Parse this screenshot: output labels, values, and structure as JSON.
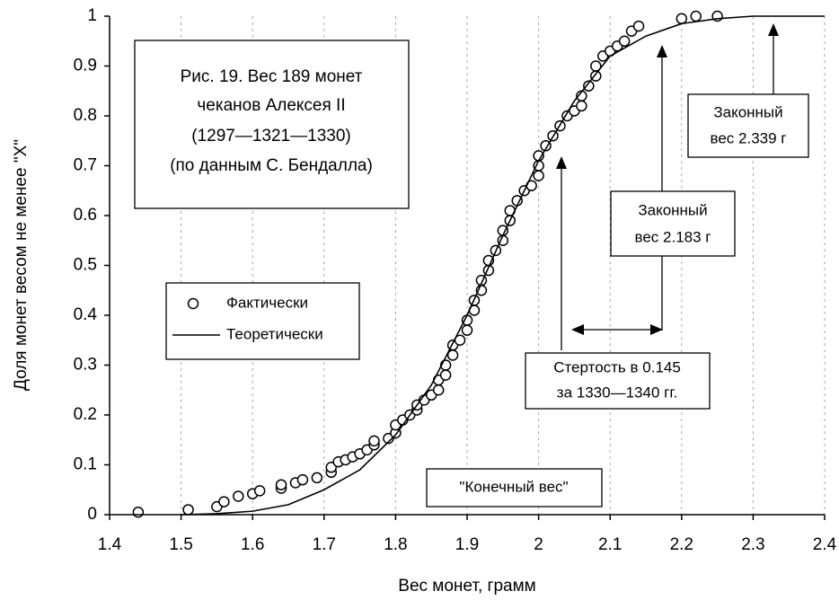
{
  "chart_data": {
    "type": "scatter",
    "title": [
      "Рис. 19. Вес 189 монет",
      "чеканов Алексея II",
      "(1297—1321—1330)",
      "(по данным С. Бендалла)"
    ],
    "x_label": "Вес монет, грамм",
    "y_label": "Доля монет весом не менее \"X\"",
    "xlim": [
      1.4,
      2.4
    ],
    "ylim": [
      0,
      1
    ],
    "xticks": [
      1.4,
      1.5,
      1.6,
      1.7,
      1.8,
      1.9,
      2,
      2.1,
      2.2,
      2.3,
      2.4
    ],
    "yticks": [
      0,
      0.1,
      0.2,
      0.3,
      0.4,
      0.5,
      0.6,
      0.7,
      0.8,
      0.9,
      1
    ],
    "grid": true,
    "series": [
      {
        "name": "Фактически",
        "color": "#000000",
        "marker": "circle",
        "x": [
          1.44,
          1.51,
          1.55,
          1.56,
          1.58,
          1.6,
          1.61,
          1.64,
          1.64,
          1.66,
          1.67,
          1.69,
          1.71,
          1.71,
          1.72,
          1.73,
          1.74,
          1.75,
          1.76,
          1.77,
          1.77,
          1.79,
          1.8,
          1.8,
          1.81,
          1.82,
          1.83,
          1.83,
          1.84,
          1.85,
          1.86,
          1.86,
          1.87,
          1.87,
          1.88,
          1.88,
          1.89,
          1.9,
          1.9,
          1.91,
          1.91,
          1.92,
          1.92,
          1.93,
          1.93,
          1.94,
          1.95,
          1.95,
          1.96,
          1.96,
          1.97,
          1.98,
          1.99,
          2.0,
          2.0,
          2.0,
          2.01,
          2.02,
          2.03,
          2.04,
          2.05,
          2.06,
          2.06,
          2.07,
          2.08,
          2.08,
          2.09,
          2.1,
          2.11,
          2.12,
          2.13,
          2.14,
          2.2,
          2.22,
          2.25
        ],
        "values": [
          0.005,
          0.01,
          0.016,
          0.026,
          0.037,
          0.042,
          0.048,
          0.053,
          0.06,
          0.064,
          0.07,
          0.074,
          0.085,
          0.095,
          0.106,
          0.11,
          0.116,
          0.122,
          0.13,
          0.14,
          0.148,
          0.153,
          0.164,
          0.18,
          0.19,
          0.2,
          0.21,
          0.22,
          0.23,
          0.24,
          0.25,
          0.27,
          0.28,
          0.3,
          0.32,
          0.34,
          0.35,
          0.37,
          0.39,
          0.41,
          0.43,
          0.45,
          0.47,
          0.49,
          0.51,
          0.53,
          0.55,
          0.57,
          0.59,
          0.61,
          0.63,
          0.65,
          0.66,
          0.68,
          0.7,
          0.72,
          0.74,
          0.76,
          0.78,
          0.8,
          0.81,
          0.82,
          0.84,
          0.86,
          0.88,
          0.9,
          0.92,
          0.93,
          0.94,
          0.95,
          0.97,
          0.98,
          0.995,
          1,
          1
        ]
      },
      {
        "name": "Теоретически",
        "color": "#000000",
        "marker": "line",
        "x": [
          1.5,
          1.55,
          1.6,
          1.65,
          1.7,
          1.75,
          1.8,
          1.85,
          1.9,
          1.95,
          2.0,
          2.05,
          2.1,
          2.15,
          2.2,
          2.25,
          2.3,
          2.4
        ],
        "values": [
          0,
          0.002,
          0.007,
          0.02,
          0.05,
          0.09,
          0.16,
          0.26,
          0.4,
          0.56,
          0.71,
          0.83,
          0.92,
          0.96,
          0.985,
          0.995,
          1,
          1
        ]
      }
    ],
    "annotations": {
      "legal_1": [
        "Законный",
        "вес 2.183 г"
      ],
      "legal_2": [
        "Законный",
        "вес 2.339 г"
      ],
      "wear": [
        "Стертость в 0.145",
        "за 1330—1340 гг."
      ],
      "final": "\"Конечный вес\""
    }
  }
}
